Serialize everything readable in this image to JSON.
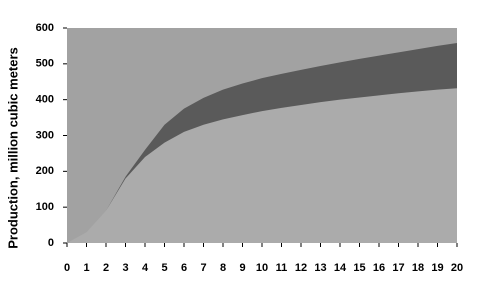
{
  "chart_data": {
    "type": "area",
    "stacked": true,
    "y_label": "Production, million cubic meters",
    "x": [
      0,
      1,
      2,
      3,
      4,
      5,
      6,
      7,
      8,
      9,
      10,
      11,
      12,
      13,
      14,
      15,
      16,
      17,
      18,
      19,
      20
    ],
    "series": [
      {
        "color": "#ababab",
        "values": [
          0,
          30,
          90,
          180,
          240,
          280,
          310,
          330,
          345,
          357,
          368,
          377,
          385,
          393,
          400,
          406,
          412,
          418,
          423,
          428,
          432
        ]
      },
      {
        "color": "#5a5a5a",
        "values": [
          0,
          0,
          0,
          5,
          20,
          50,
          65,
          75,
          83,
          88,
          92,
          95,
          98,
          101,
          104,
          108,
          111,
          114,
          118,
          122,
          126
        ]
      }
    ],
    "plot_background": "#a2a2a2",
    "xlim": [
      0,
      20
    ],
    "xticks": [
      0,
      1,
      2,
      3,
      4,
      5,
      6,
      7,
      8,
      9,
      10,
      11,
      12,
      13,
      14,
      15,
      16,
      17,
      18,
      19,
      20
    ],
    "ylim": [
      0,
      600
    ],
    "yticks": [
      0,
      100,
      200,
      300,
      400,
      500,
      600
    ]
  }
}
